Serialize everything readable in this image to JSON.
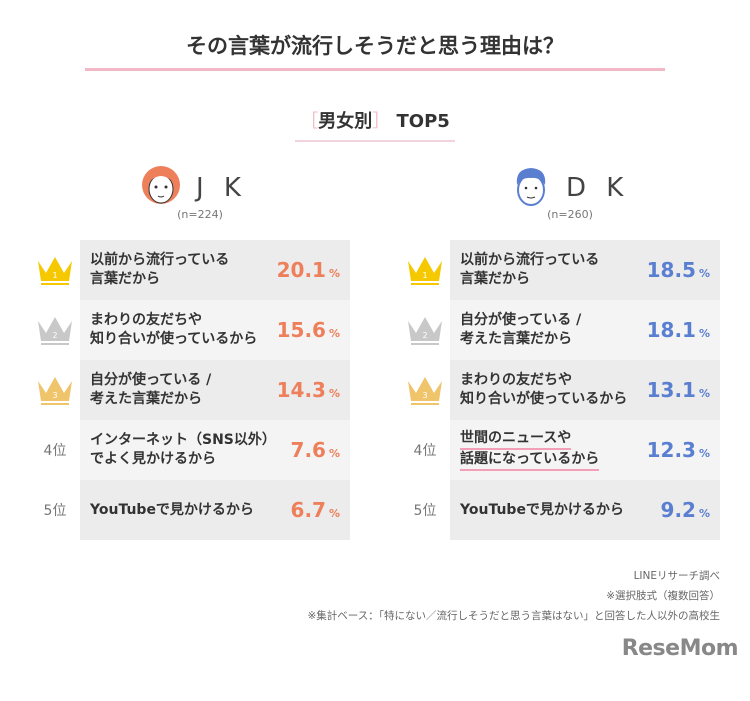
{
  "title": "その言葉が流行しそうだと思う理由は？",
  "subtitle": {
    "open": "［",
    "label": "男女別",
    "close": "］",
    "suffix": "TOP5"
  },
  "colors": {
    "jk": "#ee7f5b",
    "dk": "#5a7fd1",
    "row_dark": "#ececec",
    "row_light": "#f4f4f4",
    "gold": "#f5c800",
    "silver": "#c8c8c8",
    "bronze": "#f0c46a"
  },
  "chart_data": {
    "type": "table",
    "groups": [
      {
        "name": "J K",
        "n": "(n=224)",
        "icon": "girl-avatar-icon",
        "items": [
          {
            "rank": "1",
            "label": "以前から流行っている\n言葉だから",
            "value": 20.1
          },
          {
            "rank": "2",
            "label": "まわりの友だちや\n知り合いが使っているから",
            "value": 15.6
          },
          {
            "rank": "3",
            "label": "自分が使っている /\n考えた言葉だから",
            "value": 14.3
          },
          {
            "rank": "4位",
            "label": "インターネット（SNS以外）\nでよく見かけるから",
            "value": 7.6
          },
          {
            "rank": "5位",
            "label": "YouTubeで見かけるから",
            "value": 6.7
          }
        ]
      },
      {
        "name": "D K",
        "n": "(n=260)",
        "icon": "boy-avatar-icon",
        "items": [
          {
            "rank": "1",
            "label": "以前から流行っている\n言葉だから",
            "value": 18.5
          },
          {
            "rank": "2",
            "label": "自分が使っている /\n考えた言葉だから",
            "value": 18.1
          },
          {
            "rank": "3",
            "label": "まわりの友だちや\n知り合いが使っているから",
            "value": 13.1
          },
          {
            "rank": "4位",
            "label": "世間のニュースや\n話題になっているから",
            "value": 12.3,
            "underlined": true
          },
          {
            "rank": "5位",
            "label": "YouTubeで見かけるから",
            "value": 9.2
          }
        ]
      }
    ],
    "unit": "%"
  },
  "notes": [
    "LINEリサーチ調べ",
    "※選択肢式（複数回答）",
    "※集計ベース：「特にない／流行しそうだと思う言葉はない」と回答した人以外の高校生"
  ],
  "logo": "ReseMom"
}
